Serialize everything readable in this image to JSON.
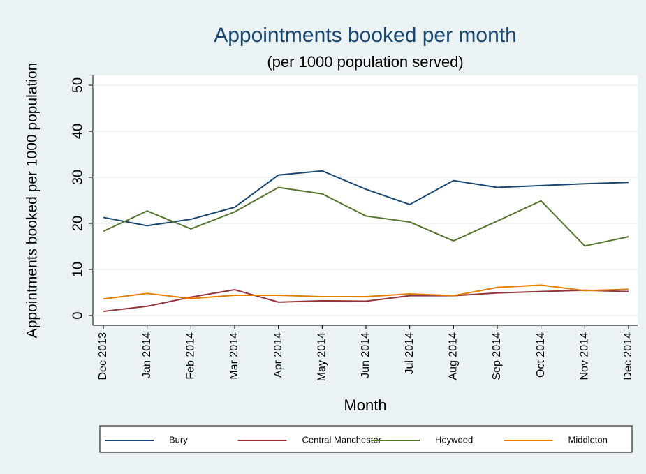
{
  "chart_data": {
    "type": "line",
    "title": "Appointments booked per month",
    "subtitle": "(per 1000 population served)",
    "x_label": "Month",
    "y_label": "Appointments booked per 1000 population",
    "categories": [
      "Dec 2013",
      "Jan 2014",
      "Feb 2014",
      "Mar 2014",
      "Apr 2014",
      "May 2014",
      "Jun 2014",
      "Jul 2014",
      "Aug 2014",
      "Sep 2014",
      "Oct 2014",
      "Nov 2014",
      "Dec 2014"
    ],
    "series": [
      {
        "name": "Bury",
        "color": "#1a476f",
        "values": [
          21.3,
          19.5,
          20.9,
          23.5,
          30.5,
          31.4,
          27.4,
          24.1,
          29.3,
          27.8,
          28.2,
          28.6,
          28.9
        ]
      },
      {
        "name": "Central Manchester",
        "color": "#90353b",
        "values": [
          0.9,
          2.0,
          4.0,
          5.6,
          2.9,
          3.2,
          3.1,
          4.3,
          4.3,
          4.9,
          5.2,
          5.5,
          5.2
        ]
      },
      {
        "name": "Heywood",
        "color": "#55752f",
        "values": [
          18.3,
          22.7,
          18.8,
          22.5,
          27.8,
          26.4,
          21.6,
          20.3,
          16.2,
          20.5,
          24.9,
          15.1,
          17.1
        ]
      },
      {
        "name": "Middleton",
        "color": "#e37e00",
        "values": [
          3.6,
          4.8,
          3.7,
          4.4,
          4.4,
          4.1,
          4.1,
          4.7,
          4.3,
          6.1,
          6.6,
          5.4,
          5.7
        ]
      }
    ],
    "ylim": [
      0,
      50
    ],
    "yticks": [
      0,
      10,
      20,
      30,
      40,
      50
    ],
    "grid": true,
    "legend": "bottom"
  }
}
